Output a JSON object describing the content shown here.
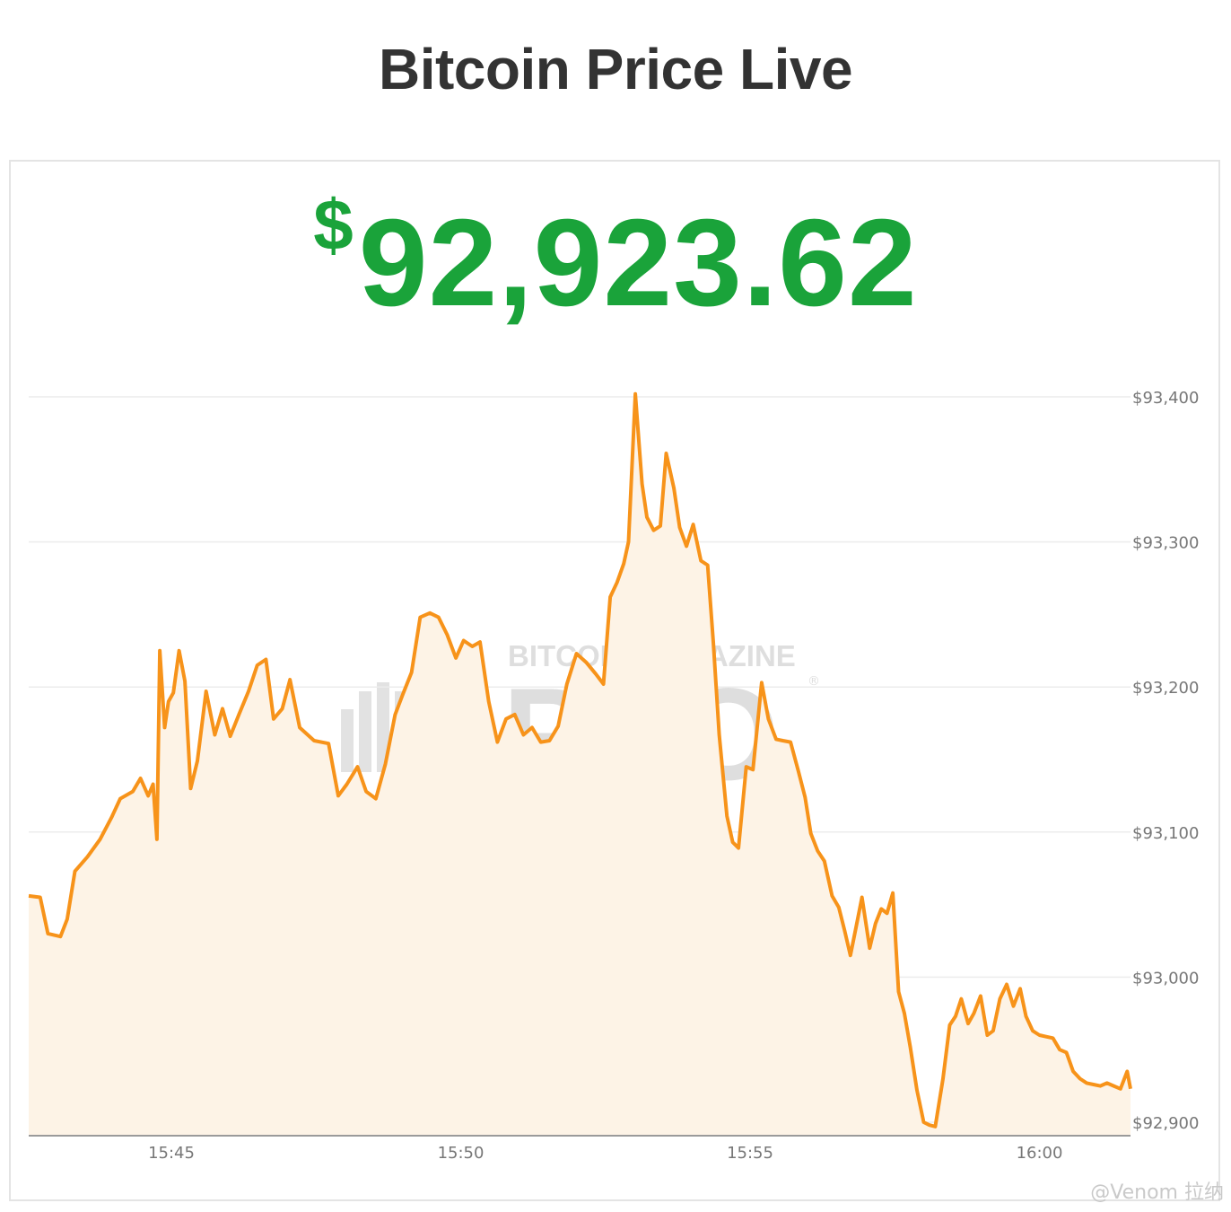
{
  "page": {
    "title": "Bitcoin Price Live"
  },
  "price": {
    "currency_symbol": "$",
    "value": "92,923.62"
  },
  "credit": "@Venom 拉纳",
  "colors": {
    "line": "#f7931a",
    "fill": "#fdf3e6",
    "price": "#1aa33a",
    "title": "#333333",
    "grid": "#ececec",
    "axis": "#999999"
  },
  "watermark": {
    "line1": "BITCOIN MAGAZINE",
    "line2": "PRO",
    "mark": "®"
  },
  "chart_data": {
    "type": "area",
    "title": "",
    "xlabel": "",
    "ylabel": "",
    "ylim": [
      92892,
      93410
    ],
    "xlim": [
      "15:42:31",
      "16:01:39"
    ],
    "x_ticks": [
      "15:45",
      "15:50",
      "15:55",
      "16:00"
    ],
    "y_ticks": [
      "$92,900",
      "$93,000",
      "$93,100",
      "$93,200",
      "$93,300",
      "$93,400"
    ],
    "grid": true,
    "legend": "none",
    "series": [
      {
        "points": [
          [
            "15:42:31",
            93056
          ],
          [
            "15:42:44",
            93055
          ],
          [
            "15:42:52",
            93030
          ],
          [
            "15:43:05",
            93028
          ],
          [
            "15:43:12",
            93040
          ],
          [
            "15:43:20",
            93073
          ],
          [
            "15:43:33",
            93083
          ],
          [
            "15:43:46",
            93095
          ],
          [
            "15:43:58",
            93110
          ],
          [
            "15:44:07",
            93123
          ],
          [
            "15:44:20",
            93128
          ],
          [
            "15:44:28",
            93137
          ],
          [
            "15:44:36",
            93125
          ],
          [
            "15:44:41",
            93133
          ],
          [
            "15:44:45",
            93095
          ],
          [
            "15:44:48",
            93225
          ],
          [
            "15:44:53",
            93172
          ],
          [
            "15:44:57",
            93190
          ],
          [
            "15:45:02",
            93196
          ],
          [
            "15:45:08",
            93225
          ],
          [
            "15:45:14",
            93204
          ],
          [
            "15:45:20",
            93130
          ],
          [
            "15:45:27",
            93149
          ],
          [
            "15:45:36",
            93197
          ],
          [
            "15:45:45",
            93167
          ],
          [
            "15:45:53",
            93185
          ],
          [
            "15:46:01",
            93166
          ],
          [
            "15:46:10",
            93181
          ],
          [
            "15:46:20",
            93197
          ],
          [
            "15:46:29",
            93215
          ],
          [
            "15:46:38",
            93219
          ],
          [
            "15:46:46",
            93178
          ],
          [
            "15:46:55",
            93185
          ],
          [
            "15:47:03",
            93205
          ],
          [
            "15:47:13",
            93172
          ],
          [
            "15:47:28",
            93163
          ],
          [
            "15:47:43",
            93161
          ],
          [
            "15:47:53",
            93125
          ],
          [
            "15:48:02",
            93133
          ],
          [
            "15:48:13",
            93145
          ],
          [
            "15:48:22",
            93128
          ],
          [
            "15:48:32",
            93123
          ],
          [
            "15:48:42",
            93147
          ],
          [
            "15:48:52",
            93181
          ],
          [
            "15:49:00",
            93195
          ],
          [
            "15:49:09",
            93210
          ],
          [
            "15:49:18",
            93248
          ],
          [
            "15:49:28",
            93251
          ],
          [
            "15:49:37",
            93248
          ],
          [
            "15:49:46",
            93236
          ],
          [
            "15:49:55",
            93220
          ],
          [
            "15:50:03",
            93232
          ],
          [
            "15:50:12",
            93228
          ],
          [
            "15:50:20",
            93231
          ],
          [
            "15:50:29",
            93190
          ],
          [
            "15:50:38",
            93162
          ],
          [
            "15:50:47",
            93178
          ],
          [
            "15:50:56",
            93181
          ],
          [
            "15:51:05",
            93167
          ],
          [
            "15:51:14",
            93172
          ],
          [
            "15:51:23",
            93162
          ],
          [
            "15:51:32",
            93163
          ],
          [
            "15:51:41",
            93173
          ],
          [
            "15:51:50",
            93202
          ],
          [
            "15:52:00",
            93223
          ],
          [
            "15:52:10",
            93217
          ],
          [
            "15:52:20",
            93209
          ],
          [
            "15:52:28",
            93202
          ],
          [
            "15:52:35",
            93262
          ],
          [
            "15:52:42",
            93272
          ],
          [
            "15:52:49",
            93285
          ],
          [
            "15:52:54",
            93300
          ],
          [
            "15:53:01",
            93402
          ],
          [
            "15:53:08",
            93340
          ],
          [
            "15:53:13",
            93317
          ],
          [
            "15:53:20",
            93308
          ],
          [
            "15:53:27",
            93311
          ],
          [
            "15:53:33",
            93361
          ],
          [
            "15:53:41",
            93337
          ],
          [
            "15:53:47",
            93310
          ],
          [
            "15:53:54",
            93297
          ],
          [
            "15:54:01",
            93312
          ],
          [
            "15:54:09",
            93287
          ],
          [
            "15:54:16",
            93284
          ],
          [
            "15:54:22",
            93230
          ],
          [
            "15:54:28",
            93167
          ],
          [
            "15:54:36",
            93111
          ],
          [
            "15:54:42",
            93093
          ],
          [
            "15:54:48",
            93089
          ],
          [
            "15:54:56",
            93145
          ],
          [
            "15:55:03",
            93143
          ],
          [
            "15:55:12",
            93203
          ],
          [
            "15:55:19",
            93178
          ],
          [
            "15:55:27",
            93164
          ],
          [
            "15:55:34",
            93163
          ],
          [
            "15:55:42",
            93162
          ],
          [
            "15:55:50",
            93142
          ],
          [
            "15:55:57",
            93124
          ],
          [
            "15:56:03",
            93099
          ],
          [
            "15:56:10",
            93087
          ],
          [
            "15:56:17",
            93080
          ],
          [
            "15:56:25",
            93056
          ],
          [
            "15:56:32",
            93048
          ],
          [
            "15:56:38",
            93032
          ],
          [
            "15:56:44",
            93015
          ],
          [
            "15:56:50",
            93035
          ],
          [
            "15:56:56",
            93055
          ],
          [
            "15:57:04",
            93020
          ],
          [
            "15:57:10",
            93037
          ],
          [
            "15:57:16",
            93047
          ],
          [
            "15:57:22",
            93044
          ],
          [
            "15:57:28",
            93058
          ],
          [
            "15:57:34",
            92990
          ],
          [
            "15:57:40",
            92975
          ],
          [
            "15:57:46",
            92952
          ],
          [
            "15:57:53",
            92922
          ],
          [
            "15:58:00",
            92900
          ],
          [
            "15:58:06",
            92898
          ],
          [
            "15:58:12",
            92897
          ],
          [
            "15:58:20",
            92930
          ],
          [
            "15:58:27",
            92967
          ],
          [
            "15:58:33",
            92973
          ],
          [
            "15:58:39",
            92985
          ],
          [
            "15:58:46",
            92968
          ],
          [
            "15:58:52",
            92975
          ],
          [
            "15:58:59",
            92987
          ],
          [
            "15:59:06",
            92960
          ],
          [
            "15:59:12",
            92963
          ],
          [
            "15:59:19",
            92985
          ],
          [
            "15:59:26",
            92995
          ],
          [
            "15:59:33",
            92980
          ],
          [
            "15:59:40",
            92992
          ],
          [
            "15:59:46",
            92973
          ],
          [
            "15:59:53",
            92963
          ],
          [
            "16:00:00",
            92960
          ],
          [
            "16:00:07",
            92959
          ],
          [
            "16:00:14",
            92958
          ],
          [
            "16:00:21",
            92950
          ],
          [
            "16:00:28",
            92948
          ],
          [
            "16:00:35",
            92935
          ],
          [
            "16:00:42",
            92930
          ],
          [
            "16:00:49",
            92927
          ],
          [
            "16:00:56",
            92926
          ],
          [
            "16:01:03",
            92925
          ],
          [
            "16:01:10",
            92927
          ],
          [
            "16:01:17",
            92925
          ],
          [
            "16:01:24",
            92923
          ],
          [
            "16:01:31",
            92935
          ],
          [
            "16:01:39",
            92923
          ]
        ]
      }
    ]
  }
}
